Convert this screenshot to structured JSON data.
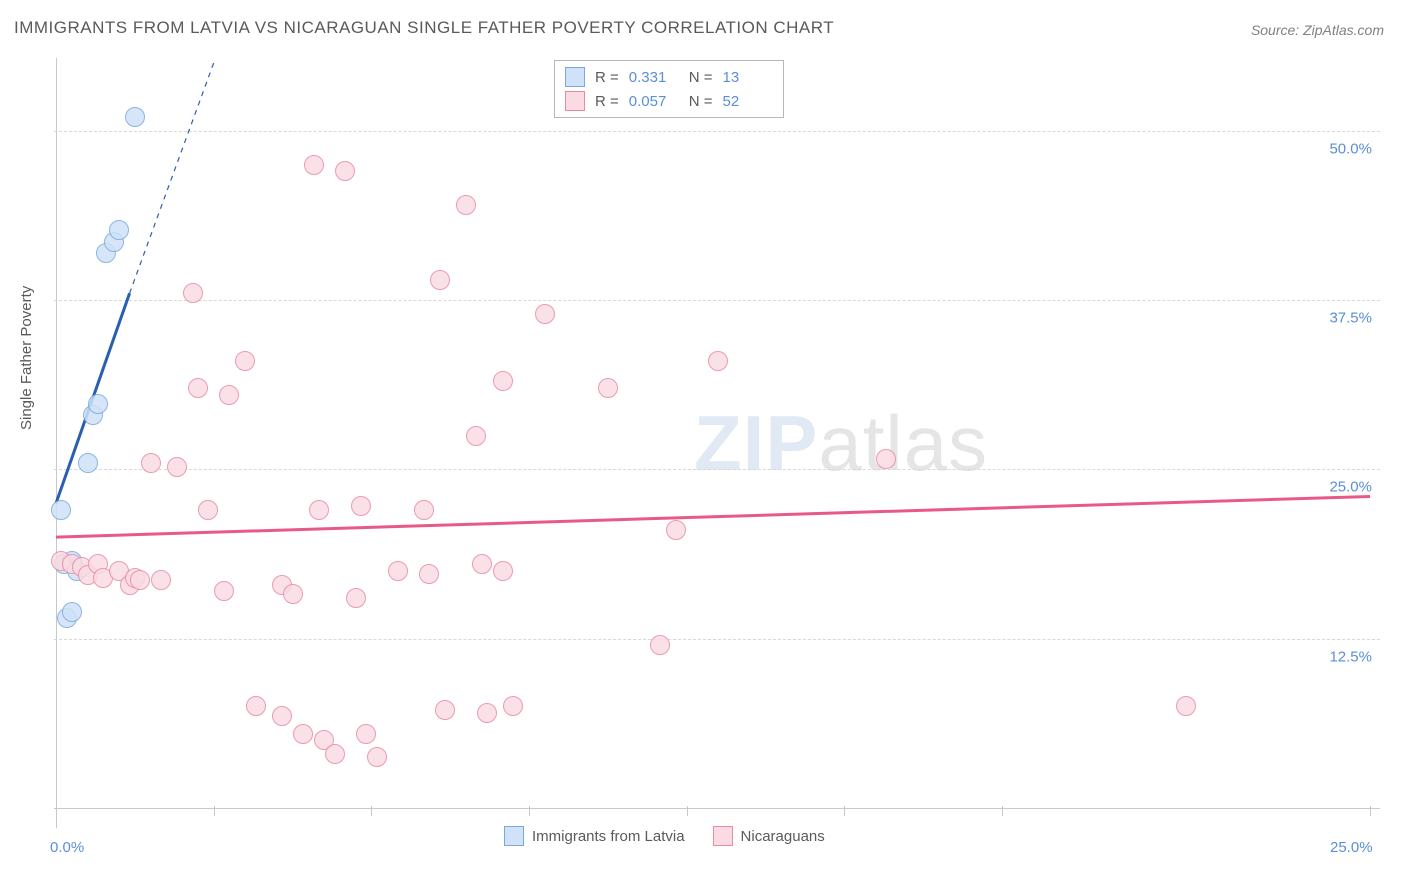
{
  "title": "IMMIGRANTS FROM LATVIA VS NICARAGUAN SINGLE FATHER POVERTY CORRELATION CHART",
  "source": "Source: ZipAtlas.com",
  "y_axis_label": "Single Father Poverty",
  "watermark_a": "ZIP",
  "watermark_b": "atlas",
  "chart": {
    "type": "scatter",
    "background_color": "#ffffff",
    "grid_color": "#d8d8d8",
    "axis_color": "#c8c8c8",
    "label_color": "#5b8fd6",
    "title_color": "#5a5a5a",
    "xlim": [
      0,
      25
    ],
    "ylim": [
      0,
      55
    ],
    "x_ticks": [
      0,
      25
    ],
    "x_tick_labels": [
      "0.0%",
      "25.0%"
    ],
    "x_tick_marks": [
      0,
      3,
      6,
      9,
      12,
      15,
      18,
      25
    ],
    "y_gridlines": [
      12.5,
      25.0,
      37.5,
      50.0
    ],
    "y_tick_labels": [
      "12.5%",
      "25.0%",
      "37.5%",
      "50.0%"
    ],
    "marker_radius": 9,
    "marker_stroke_width": 1.5,
    "series": [
      {
        "name": "Immigrants from Latvia",
        "color_fill": "#cfe2f7",
        "color_stroke": "#7aa8dd",
        "trend_color": "#2a5fb0",
        "trend_width": 3,
        "R": "0.331",
        "N": "13",
        "trend": {
          "x1": 0.0,
          "y1": 22.5,
          "x2": 1.4,
          "y2": 38.0,
          "dash_x2": 3.0,
          "dash_y2": 55.0
        },
        "points": [
          {
            "x": 0.1,
            "y": 22.0
          },
          {
            "x": 0.2,
            "y": 14.0
          },
          {
            "x": 0.3,
            "y": 14.5
          },
          {
            "x": 0.15,
            "y": 18.0
          },
          {
            "x": 0.3,
            "y": 18.2
          },
          {
            "x": 0.4,
            "y": 17.5
          },
          {
            "x": 0.6,
            "y": 25.5
          },
          {
            "x": 0.7,
            "y": 29.0
          },
          {
            "x": 0.8,
            "y": 29.8
          },
          {
            "x": 0.95,
            "y": 41.0
          },
          {
            "x": 1.1,
            "y": 41.8
          },
          {
            "x": 1.2,
            "y": 42.7
          },
          {
            "x": 1.5,
            "y": 51.0
          }
        ]
      },
      {
        "name": "Nicaraguans",
        "color_fill": "#fadbe3",
        "color_stroke": "#e98aa3",
        "trend_color": "#e75a88",
        "trend_width": 3,
        "R": "0.057",
        "N": "52",
        "trend": {
          "x1": 0.0,
          "y1": 20.0,
          "x2": 25.0,
          "y2": 23.0
        },
        "points": [
          {
            "x": 0.1,
            "y": 18.2
          },
          {
            "x": 0.3,
            "y": 18.0
          },
          {
            "x": 0.5,
            "y": 17.8
          },
          {
            "x": 0.6,
            "y": 17.2
          },
          {
            "x": 0.8,
            "y": 18.0
          },
          {
            "x": 0.9,
            "y": 17.0
          },
          {
            "x": 1.2,
            "y": 17.5
          },
          {
            "x": 1.4,
            "y": 16.5
          },
          {
            "x": 1.5,
            "y": 17.0
          },
          {
            "x": 1.6,
            "y": 16.8
          },
          {
            "x": 1.8,
            "y": 25.5
          },
          {
            "x": 2.0,
            "y": 16.8
          },
          {
            "x": 2.3,
            "y": 25.2
          },
          {
            "x": 2.6,
            "y": 38.0
          },
          {
            "x": 2.7,
            "y": 31.0
          },
          {
            "x": 2.9,
            "y": 22.0
          },
          {
            "x": 3.2,
            "y": 16.0
          },
          {
            "x": 3.3,
            "y": 30.5
          },
          {
            "x": 3.6,
            "y": 33.0
          },
          {
            "x": 3.8,
            "y": 7.5
          },
          {
            "x": 4.3,
            "y": 16.5
          },
          {
            "x": 4.3,
            "y": 6.8
          },
          {
            "x": 4.5,
            "y": 15.8
          },
          {
            "x": 4.7,
            "y": 5.5
          },
          {
            "x": 4.9,
            "y": 47.5
          },
          {
            "x": 5.0,
            "y": 22.0
          },
          {
            "x": 5.1,
            "y": 5.0
          },
          {
            "x": 5.3,
            "y": 4.0
          },
          {
            "x": 5.5,
            "y": 47.0
          },
          {
            "x": 5.7,
            "y": 15.5
          },
          {
            "x": 5.8,
            "y": 22.3
          },
          {
            "x": 5.9,
            "y": 5.5
          },
          {
            "x": 6.1,
            "y": 3.8
          },
          {
            "x": 6.5,
            "y": 17.5
          },
          {
            "x": 7.0,
            "y": 22.0
          },
          {
            "x": 7.1,
            "y": 17.3
          },
          {
            "x": 7.3,
            "y": 39.0
          },
          {
            "x": 7.4,
            "y": 7.2
          },
          {
            "x": 7.8,
            "y": 44.5
          },
          {
            "x": 8.0,
            "y": 27.5
          },
          {
            "x": 8.1,
            "y": 18.0
          },
          {
            "x": 8.2,
            "y": 7.0
          },
          {
            "x": 8.5,
            "y": 17.5
          },
          {
            "x": 8.5,
            "y": 31.5
          },
          {
            "x": 8.7,
            "y": 7.5
          },
          {
            "x": 9.3,
            "y": 36.5
          },
          {
            "x": 10.5,
            "y": 31.0
          },
          {
            "x": 11.5,
            "y": 12.0
          },
          {
            "x": 11.8,
            "y": 20.5
          },
          {
            "x": 12.6,
            "y": 33.0
          },
          {
            "x": 15.8,
            "y": 25.8
          },
          {
            "x": 21.5,
            "y": 7.5
          }
        ]
      }
    ]
  },
  "legend_top": {
    "R_label": "R  =",
    "N_label": "N  ="
  },
  "legend_bottom_left": "Immigrants from Latvia",
  "legend_bottom_right": "Nicaraguans"
}
